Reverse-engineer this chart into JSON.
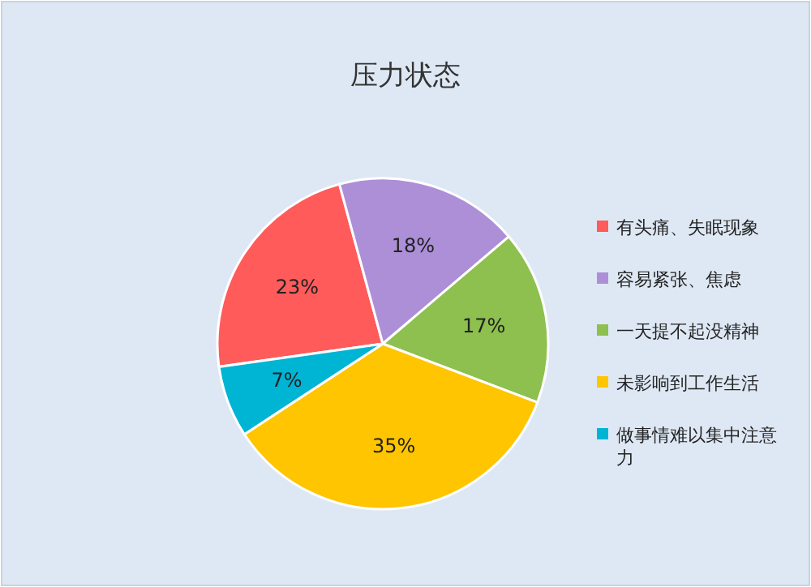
{
  "chart_data": {
    "type": "pie",
    "title": "压力状态",
    "categories": [
      "有头痛、失眠现象",
      "容易紧张、焦虑",
      "一天提不起没精神",
      "未影响到工作生活",
      "做事情难以集中注意力"
    ],
    "values": [
      23,
      18,
      17,
      35,
      7
    ],
    "colors": [
      "#ff5b5b",
      "#ad8fd8",
      "#8dc04e",
      "#ffc500",
      "#00b4d4"
    ],
    "value_labels": [
      "23%",
      "18%",
      "17%",
      "35%",
      "7%"
    ],
    "legend": "right"
  }
}
